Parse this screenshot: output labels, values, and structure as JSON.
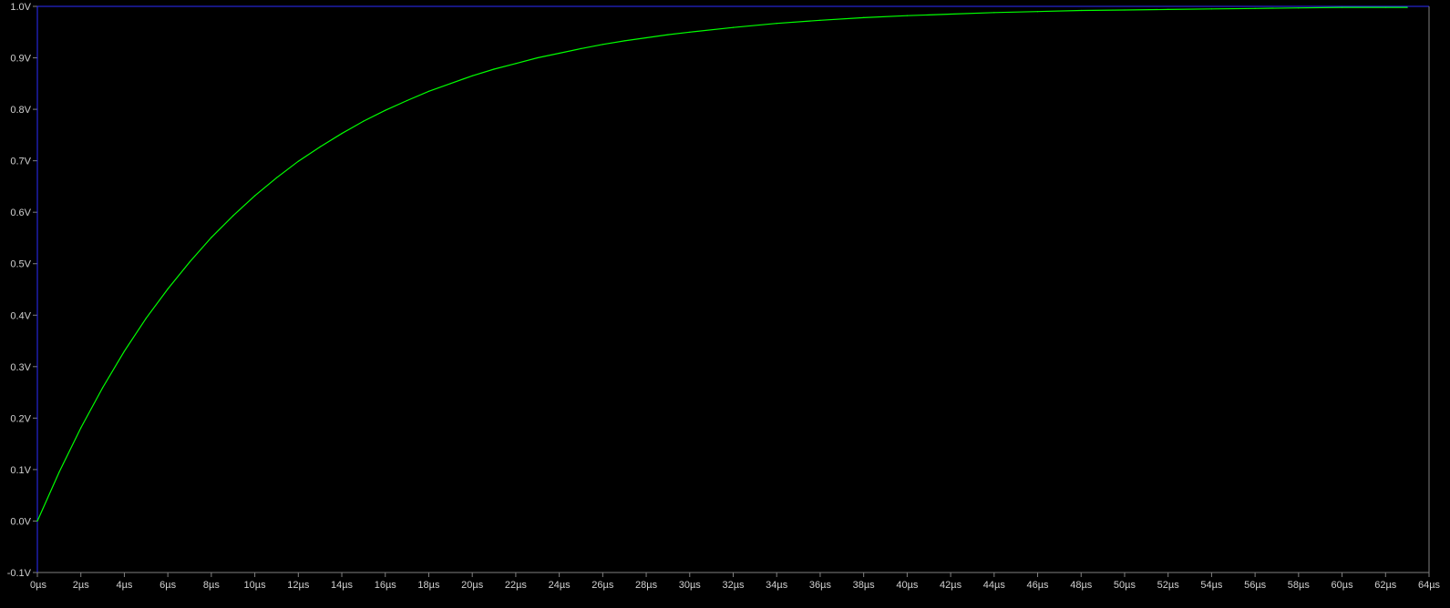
{
  "colors": {
    "background": "#000000",
    "frame": "#2c2cff",
    "trace": "#00ff00",
    "labels": "#d0d0d0"
  },
  "chart_data": {
    "type": "line",
    "title": "",
    "xlabel": "",
    "ylabel": "",
    "xlim": [
      0,
      64
    ],
    "ylim": [
      -0.1,
      1.0
    ],
    "grid": false,
    "x_unit": "µs",
    "y_unit": "V",
    "x_ticks": [
      "0µs",
      "2µs",
      "4µs",
      "6µs",
      "8µs",
      "10µs",
      "12µs",
      "14µs",
      "16µs",
      "18µs",
      "20µs",
      "22µs",
      "24µs",
      "26µs",
      "28µs",
      "30µs",
      "32µs",
      "34µs",
      "36µs",
      "38µs",
      "40µs",
      "42µs",
      "44µs",
      "46µs",
      "48µs",
      "50µs",
      "52µs",
      "54µs",
      "56µs",
      "58µs",
      "60µs",
      "62µs",
      "64µs"
    ],
    "y_ticks": [
      "1.0V",
      "0.9V",
      "0.8V",
      "0.7V",
      "0.6V",
      "0.5V",
      "0.4V",
      "0.3V",
      "0.2V",
      "0.1V",
      "0.0V",
      "-0.1V"
    ],
    "series": [
      {
        "color": "#00ff00",
        "x": [
          0,
          1,
          2,
          3,
          4,
          5,
          6,
          7,
          8,
          9,
          10,
          11,
          12,
          13,
          14,
          15,
          16,
          17,
          18,
          19,
          20,
          21,
          22,
          23,
          24,
          25,
          26,
          27,
          28,
          29,
          30,
          32,
          34,
          36,
          38,
          40,
          42,
          44,
          46,
          48,
          50,
          52,
          54,
          56,
          58,
          60,
          62,
          63
        ],
        "y": [
          0.0,
          0.095,
          0.181,
          0.259,
          0.33,
          0.394,
          0.451,
          0.503,
          0.551,
          0.593,
          0.632,
          0.667,
          0.699,
          0.727,
          0.753,
          0.777,
          0.798,
          0.817,
          0.835,
          0.85,
          0.865,
          0.878,
          0.889,
          0.9,
          0.909,
          0.918,
          0.926,
          0.933,
          0.939,
          0.945,
          0.95,
          0.959,
          0.967,
          0.973,
          0.978,
          0.982,
          0.985,
          0.988,
          0.99,
          0.992,
          0.993,
          0.994,
          0.995,
          0.996,
          0.997,
          0.998,
          0.998,
          0.998
        ]
      }
    ]
  }
}
